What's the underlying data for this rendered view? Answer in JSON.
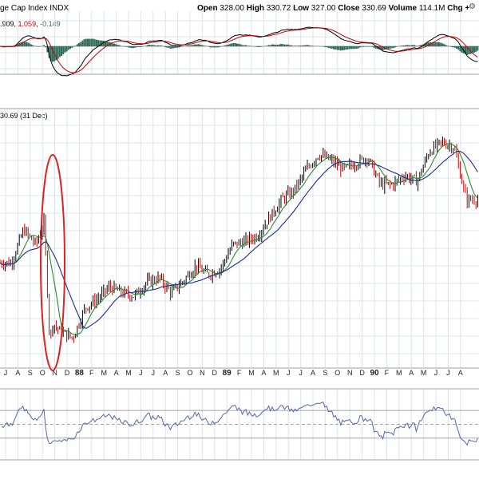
{
  "header": {
    "title": "ge Cap Index  INDX",
    "open_label": "Open",
    "open": "328.00",
    "high_label": "High",
    "high": "330.72",
    "low_label": "Low",
    "low": "327.00",
    "close_label": "Close",
    "close": "330.69",
    "volume_label": "Volume",
    "volume": "114.1M",
    "chg_label": "Chg +"
  },
  "macd_label": {
    "v1": ".909",
    "v2": "1.059",
    "v3": "-0.149",
    "sep": ", "
  },
  "price_label": "30.69 (31 Dec)",
  "colors": {
    "candle_up": "#000000",
    "candle_down": "#cc0000",
    "ma_fast": "#2e8b2e",
    "ma_slow": "#1f2b8f",
    "macd": "#000000",
    "signal": "#cc0000",
    "histogram": "#2f6b5a",
    "rsi": "#5566aa",
    "highlight": "#dd2222",
    "grid": "#dde3ec"
  },
  "chart_data": {
    "type": "candlestick",
    "x_tick_labels": [
      "J",
      "A",
      "S",
      "O",
      "N",
      "D",
      "88",
      "F",
      "M",
      "A",
      "M",
      "J",
      "J",
      "A",
      "S",
      "O",
      "N",
      "D",
      "89",
      "F",
      "M",
      "A",
      "M",
      "J",
      "J",
      "A",
      "S",
      "O",
      "N",
      "D",
      "90",
      "F",
      "M",
      "A",
      "M",
      "J",
      "J",
      "A"
    ],
    "y_tick_labels": [],
    "annotation": "red ellipse highlighting the October 1987 crash",
    "price_path_points": [
      [
        "1987-07",
        278
      ],
      [
        "1987-08",
        300
      ],
      [
        "1987-09",
        290
      ],
      [
        "1987-10-05",
        305
      ],
      [
        "1987-10-19",
        225
      ],
      [
        "1987-10-26",
        238
      ],
      [
        "1987-11",
        232
      ],
      [
        "1987-12",
        228
      ],
      [
        "1988-01",
        248
      ],
      [
        "1988-02",
        254
      ],
      [
        "1988-03",
        262
      ],
      [
        "1988-04",
        258
      ],
      [
        "1988-05",
        256
      ],
      [
        "1988-06",
        265
      ],
      [
        "1988-07",
        268
      ],
      [
        "1988-08",
        258
      ],
      [
        "1988-09",
        266
      ],
      [
        "1988-10",
        276
      ],
      [
        "1988-11",
        270
      ],
      [
        "1988-12",
        274
      ],
      [
        "1989-01",
        290
      ],
      [
        "1989-02",
        292
      ],
      [
        "1989-03",
        296
      ],
      [
        "1989-04",
        308
      ],
      [
        "1989-05",
        320
      ],
      [
        "1989-06",
        326
      ],
      [
        "1989-07",
        340
      ],
      [
        "1989-08",
        350
      ],
      [
        "1989-09",
        346
      ],
      [
        "1989-10",
        340
      ],
      [
        "1989-11",
        344
      ],
      [
        "1989-12",
        348
      ],
      [
        "1990-01",
        330
      ],
      [
        "1990-02",
        330
      ],
      [
        "1990-03",
        336
      ],
      [
        "1990-04",
        332
      ],
      [
        "1990-05",
        352
      ],
      [
        "1990-06",
        358
      ],
      [
        "1990-07",
        355
      ],
      [
        "1990-08",
        320
      ]
    ]
  }
}
